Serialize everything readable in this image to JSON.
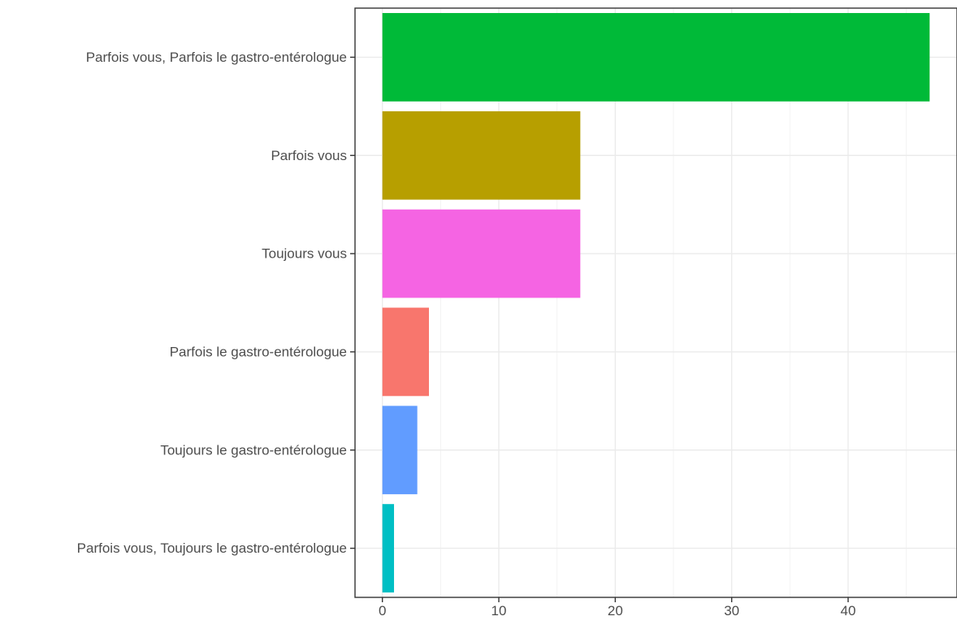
{
  "chart_data": {
    "type": "bar",
    "orientation": "horizontal",
    "categories": [
      "Parfois vous, Parfois le gastro-entérologue",
      "Parfois vous",
      "Toujours vous",
      "Parfois le gastro-entérologue",
      "Toujours le gastro-entérologue",
      "Parfois vous, Toujours le gastro-entérologue"
    ],
    "values": [
      47,
      17,
      17,
      4,
      3,
      1
    ],
    "colors": [
      "#00BA38",
      "#B79F00",
      "#F564E3",
      "#F8766D",
      "#619CFF",
      "#00BFC4"
    ],
    "xticks": [
      0,
      10,
      20,
      30,
      40
    ],
    "xlim": [
      -2.35,
      49.35
    ],
    "grid": true,
    "legend": "none",
    "title": "",
    "xlabel": "",
    "ylabel": ""
  }
}
